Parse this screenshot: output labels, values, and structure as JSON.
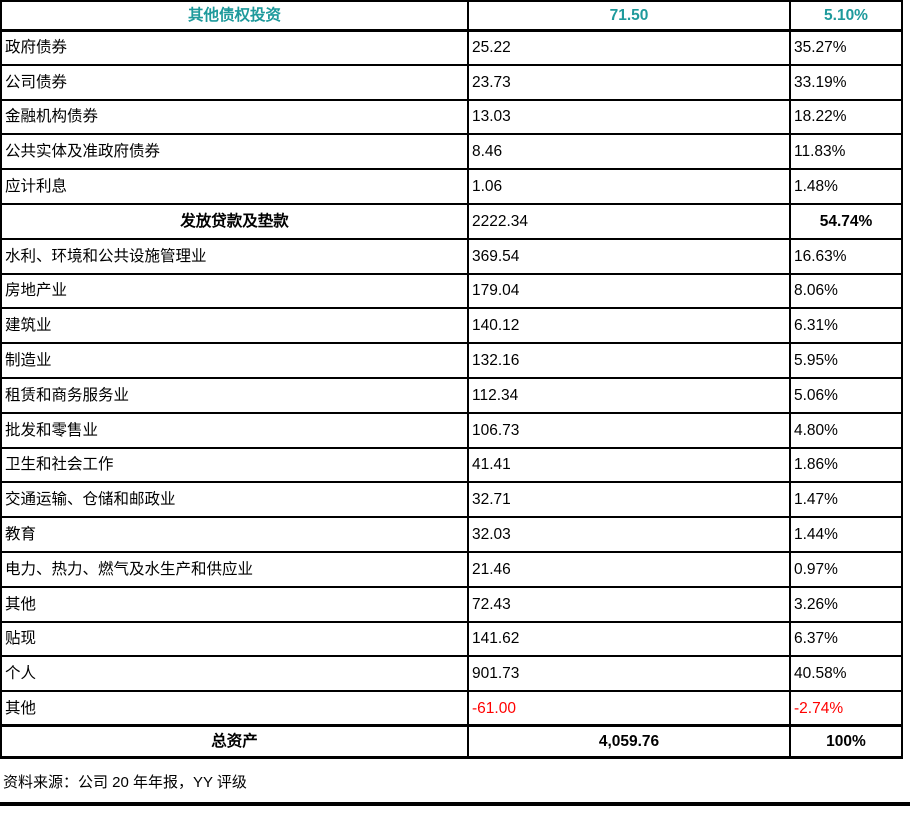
{
  "colors": {
    "accent_teal": "#1E9A9C",
    "negative_red": "#FF0000",
    "border_black": "#000000"
  },
  "table": {
    "rows": [
      {
        "label": "其他债权投资",
        "value": "71.50",
        "pct": "5.10%"
      },
      {
        "label": "政府债券",
        "value": "25.22",
        "pct": "35.27%"
      },
      {
        "label": "公司债券",
        "value": "23.73",
        "pct": "33.19%"
      },
      {
        "label": "金融机构债券",
        "value": "13.03",
        "pct": "18.22%"
      },
      {
        "label": "公共实体及准政府债券",
        "value": "8.46",
        "pct": "11.83%"
      },
      {
        "label": "应计利息",
        "value": "1.06",
        "pct": "1.48%"
      },
      {
        "label": "发放贷款及垫款",
        "value": "2222.34",
        "pct": "54.74%"
      },
      {
        "label": "水利、环境和公共设施管理业",
        "value": "369.54",
        "pct": "16.63%"
      },
      {
        "label": "房地产业",
        "value": "179.04",
        "pct": "8.06%"
      },
      {
        "label": "建筑业",
        "value": "140.12",
        "pct": "6.31%"
      },
      {
        "label": "制造业",
        "value": "132.16",
        "pct": "5.95%"
      },
      {
        "label": "租赁和商务服务业",
        "value": "112.34",
        "pct": "5.06%"
      },
      {
        "label": "批发和零售业",
        "value": "106.73",
        "pct": "4.80%"
      },
      {
        "label": "卫生和社会工作",
        "value": "41.41",
        "pct": "1.86%"
      },
      {
        "label": "交通运输、仓储和邮政业",
        "value": "32.71",
        "pct": "1.47%"
      },
      {
        "label": "教育",
        "value": "32.03",
        "pct": "1.44%"
      },
      {
        "label": "电力、热力、燃气及水生产和供应业",
        "value": "21.46",
        "pct": "0.97%"
      },
      {
        "label": "其他",
        "value": "72.43",
        "pct": "3.26%"
      },
      {
        "label": "贴现",
        "value": "141.62",
        "pct": "6.37%"
      },
      {
        "label": "个人",
        "value": "901.73",
        "pct": "40.58%"
      },
      {
        "label": "其他",
        "value": "-61.00",
        "pct": "-2.74%"
      },
      {
        "label": "总资产",
        "value": "4,059.76",
        "pct": "100%"
      }
    ]
  },
  "footer": {
    "source": "资料来源：公司 20 年年报，YY 评级"
  }
}
